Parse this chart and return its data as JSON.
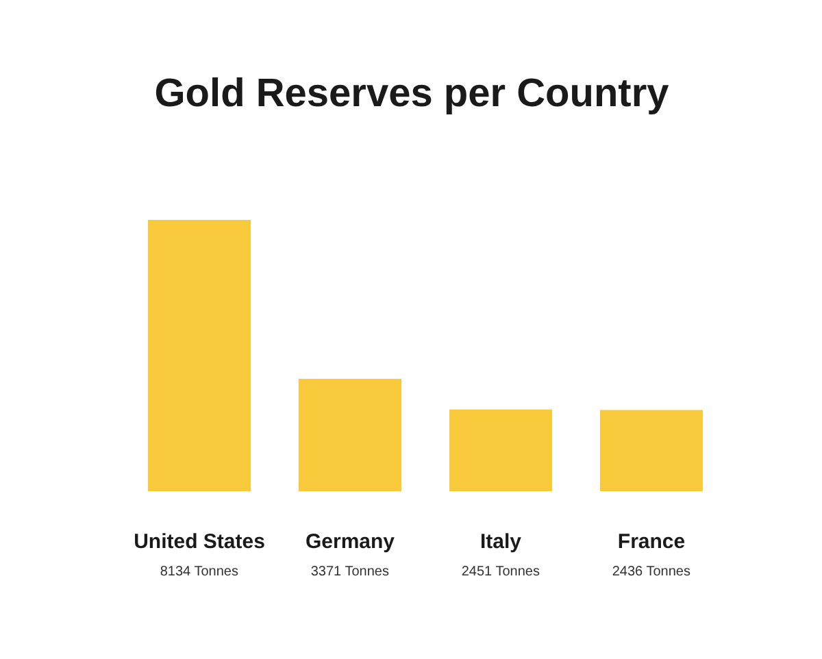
{
  "chart_data": {
    "type": "bar",
    "title": "Gold Reserves per Country",
    "categories": [
      "United States",
      "Germany",
      "Italy",
      "France"
    ],
    "values": [
      8134,
      3371,
      2451,
      2436
    ],
    "color": "#f8c93a",
    "value_labels": [
      "8134 Tonnes",
      "3371 Tonnes",
      "2451 Tonnes",
      "2436 Tonnes"
    ]
  }
}
